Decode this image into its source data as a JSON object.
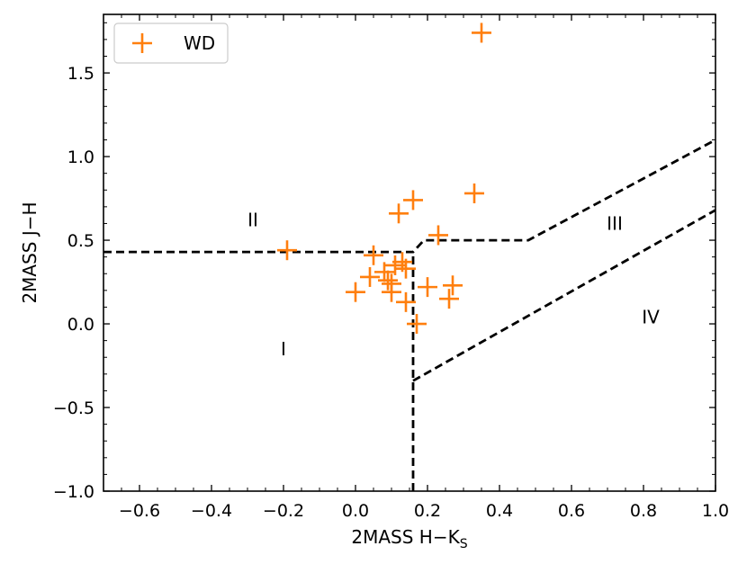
{
  "chart_data": {
    "type": "scatter",
    "xlabel": "2MASS H−K",
    "xlabel_sub": "S",
    "ylabel": "2MASS J−H",
    "xlim": [
      -0.7,
      1.0
    ],
    "ylim": [
      -1.0,
      1.85
    ],
    "xticks": [
      -0.6,
      -0.4,
      -0.2,
      0.0,
      0.2,
      0.4,
      0.6,
      0.8,
      1.0
    ],
    "xtick_labels": [
      "−0.6",
      "−0.4",
      "−0.2",
      "0.0",
      "0.2",
      "0.4",
      "0.6",
      "0.8",
      "1.0"
    ],
    "yticks": [
      -1.0,
      -0.5,
      0.0,
      0.5,
      1.0,
      1.5
    ],
    "ytick_labels": [
      "−1.0",
      "−0.5",
      "0.0",
      "0.5",
      "1.0",
      "1.5"
    ],
    "legend": {
      "label": "WD",
      "location": "upper-left",
      "color": "#ff7f0e",
      "marker": "+"
    },
    "series": [
      {
        "name": "WD",
        "color": "#ff7f0e",
        "x": [
          0.35,
          0.33,
          0.16,
          0.12,
          0.23,
          -0.19,
          0.05,
          0.13,
          0.11,
          0.14,
          0.08,
          0.04,
          0.09,
          0.1,
          0.0,
          0.1,
          0.14,
          0.27,
          0.2,
          0.26,
          0.17
        ],
        "y": [
          1.74,
          0.78,
          0.74,
          0.66,
          0.53,
          0.44,
          0.41,
          0.37,
          0.35,
          0.33,
          0.31,
          0.28,
          0.26,
          0.24,
          0.19,
          0.19,
          0.13,
          0.23,
          0.22,
          0.15,
          0.0
        ]
      }
    ],
    "boundary_lines": [
      {
        "name": "I-II-border",
        "x": [
          -0.7,
          0.16,
          0.19,
          0.48,
          1.0
        ],
        "y": [
          0.43,
          0.43,
          0.5,
          0.5,
          1.1
        ],
        "color": "#000000",
        "style": "dashed"
      },
      {
        "name": "vertical-border",
        "x": [
          0.16,
          0.16
        ],
        "y": [
          -1.0,
          0.43
        ],
        "color": "#000000",
        "style": "dashed"
      },
      {
        "name": "III-IV-border",
        "x": [
          0.16,
          1.0
        ],
        "y": [
          -0.34,
          0.68
        ],
        "color": "#000000",
        "style": "dashed"
      }
    ],
    "region_labels": [
      {
        "text": "I",
        "x": -0.2,
        "y": -0.15
      },
      {
        "text": "II",
        "x": -0.285,
        "y": 0.62
      },
      {
        "text": "III",
        "x": 0.72,
        "y": 0.6
      },
      {
        "text": "IV",
        "x": 0.82,
        "y": 0.04
      }
    ]
  }
}
